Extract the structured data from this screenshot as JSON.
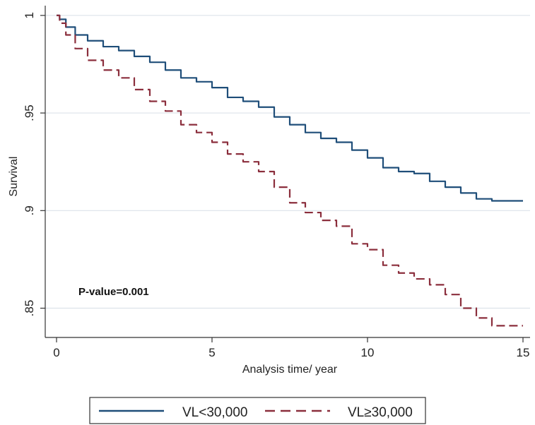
{
  "chart_data": {
    "type": "line",
    "title": "",
    "xlabel": "Analysis time/ year",
    "ylabel": "Survival",
    "xlim": [
      0,
      15
    ],
    "ylim": [
      0.835,
      1.005
    ],
    "x_ticks": [
      {
        "value": 0,
        "label": "0"
      },
      {
        "value": 5,
        "label": "5"
      },
      {
        "value": 10,
        "label": "10"
      },
      {
        "value": 15,
        "label": "15"
      }
    ],
    "y_ticks": [
      {
        "value": 1.0,
        "label": "1"
      },
      {
        "value": 0.95,
        "label": ".95"
      },
      {
        "value": 0.9,
        "label": ".9"
      },
      {
        "value": 0.85,
        "label": ".85"
      }
    ],
    "grid": "horizontal",
    "annotation": "P-value=0.001",
    "legend_position": "bottom",
    "series": [
      {
        "name": "VL<30,000",
        "color": "#1f4e79",
        "style": "solid",
        "points": [
          [
            0,
            1.0
          ],
          [
            0.1,
            0.998
          ],
          [
            0.3,
            0.994
          ],
          [
            0.6,
            0.99
          ],
          [
            1.0,
            0.987
          ],
          [
            1.5,
            0.984
          ],
          [
            2.0,
            0.982
          ],
          [
            2.5,
            0.979
          ],
          [
            3.0,
            0.976
          ],
          [
            3.5,
            0.972
          ],
          [
            4.0,
            0.968
          ],
          [
            4.5,
            0.966
          ],
          [
            5.0,
            0.963
          ],
          [
            5.5,
            0.958
          ],
          [
            6.0,
            0.956
          ],
          [
            6.5,
            0.953
          ],
          [
            7.0,
            0.948
          ],
          [
            7.5,
            0.944
          ],
          [
            8.0,
            0.94
          ],
          [
            8.5,
            0.937
          ],
          [
            9.0,
            0.935
          ],
          [
            9.5,
            0.931
          ],
          [
            10.0,
            0.927
          ],
          [
            10.5,
            0.922
          ],
          [
            11.0,
            0.92
          ],
          [
            11.5,
            0.919
          ],
          [
            12.0,
            0.915
          ],
          [
            12.5,
            0.912
          ],
          [
            13.0,
            0.909
          ],
          [
            13.5,
            0.906
          ],
          [
            14.0,
            0.905
          ],
          [
            15.0,
            0.905
          ]
        ]
      },
      {
        "name": "VL≥30,000",
        "color": "#8b2e3c",
        "style": "dashed",
        "points": [
          [
            0,
            1.0
          ],
          [
            0.1,
            0.996
          ],
          [
            0.3,
            0.99
          ],
          [
            0.6,
            0.983
          ],
          [
            1.0,
            0.977
          ],
          [
            1.5,
            0.972
          ],
          [
            2.0,
            0.968
          ],
          [
            2.5,
            0.962
          ],
          [
            3.0,
            0.956
          ],
          [
            3.5,
            0.951
          ],
          [
            4.0,
            0.944
          ],
          [
            4.5,
            0.94
          ],
          [
            5.0,
            0.935
          ],
          [
            5.5,
            0.929
          ],
          [
            6.0,
            0.925
          ],
          [
            6.5,
            0.92
          ],
          [
            7.0,
            0.912
          ],
          [
            7.5,
            0.904
          ],
          [
            8.0,
            0.899
          ],
          [
            8.5,
            0.895
          ],
          [
            9.0,
            0.892
          ],
          [
            9.5,
            0.883
          ],
          [
            10.0,
            0.88
          ],
          [
            10.5,
            0.872
          ],
          [
            11.0,
            0.868
          ],
          [
            11.5,
            0.865
          ],
          [
            12.0,
            0.862
          ],
          [
            12.5,
            0.857
          ],
          [
            13.0,
            0.85
          ],
          [
            13.5,
            0.845
          ],
          [
            14.0,
            0.841
          ],
          [
            15.0,
            0.841
          ]
        ]
      }
    ]
  }
}
